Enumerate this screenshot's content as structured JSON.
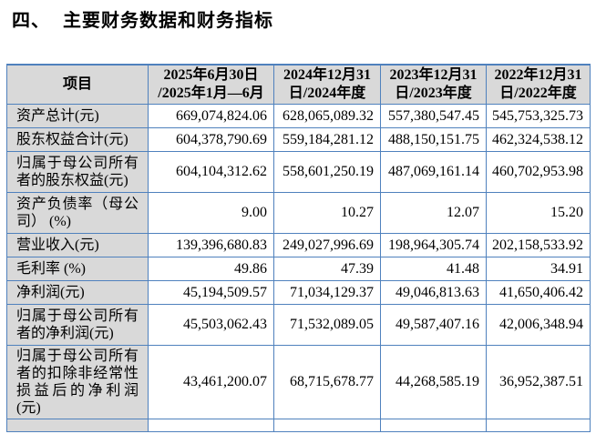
{
  "title": {
    "index": "四、",
    "text": "主要财务数据和财务指标"
  },
  "table": {
    "header": {
      "item": "项目",
      "periods": [
        "2025年6月30日\n/2025年1月—6月",
        "2024年12月31\n日/2024年度",
        "2023年12月31\n日/2023年度",
        "2022年12月31\n日/2022年度"
      ]
    },
    "rows": [
      {
        "label": "资产总计(元)",
        "values": [
          "669,074,824.06",
          "628,065,089.32",
          "557,380,547.45",
          "545,753,325.73"
        ]
      },
      {
        "label": "股东权益合计(元)",
        "values": [
          "604,378,790.69",
          "559,184,281.12",
          "488,150,151.75",
          "462,324,538.12"
        ]
      },
      {
        "label": "归属于母公司所有者的股东权益(元)",
        "values": [
          "604,104,312.62",
          "558,601,250.19",
          "487,069,161.14",
          "460,702,953.98"
        ]
      },
      {
        "label": "资产负债率（母公司） (%)",
        "values": [
          "9.00",
          "10.27",
          "12.07",
          "15.20"
        ]
      },
      {
        "label": "营业收入(元)",
        "values": [
          "139,396,680.83",
          "249,027,996.69",
          "198,964,305.74",
          "202,158,533.92"
        ]
      },
      {
        "label": "毛利率 (%)",
        "values": [
          "49.86",
          "47.39",
          "41.48",
          "34.91"
        ]
      },
      {
        "label": "净利润(元)",
        "values": [
          "45,194,509.57",
          "71,034,129.37",
          "49,046,813.63",
          "41,650,406.42"
        ]
      },
      {
        "label": "归属于母公司所有者的净利润(元)",
        "values": [
          "45,503,062.43",
          "71,532,089.05",
          "49,587,407.16",
          "42,006,348.94"
        ]
      },
      {
        "label": "归属于母公司所有者的扣除非经常性损益后的净利润(元)",
        "values": [
          "43,461,200.07",
          "68,715,678.77",
          "44,268,585.19",
          "36,952,387.51"
        ]
      }
    ],
    "colors": {
      "border": "#4f81bd",
      "shaded_cell_bg": "#d9d9d9",
      "text": "#000000"
    }
  }
}
